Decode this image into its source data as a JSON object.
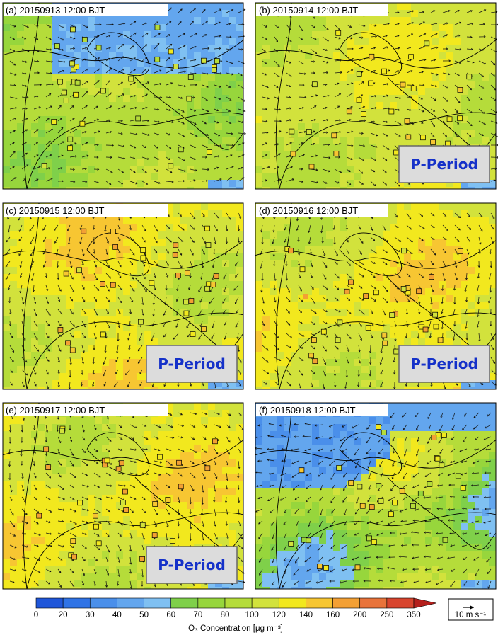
{
  "panels": [
    {
      "id": "a",
      "title": "(a) 20150913 12:00 BJT",
      "period_label": ""
    },
    {
      "id": "b",
      "title": "(b) 20150914 12:00 BJT",
      "period_label": "P-Period"
    },
    {
      "id": "c",
      "title": "(c) 20150915 12:00 BJT",
      "period_label": "P-Period"
    },
    {
      "id": "d",
      "title": "(d) 20150916 12:00 BJT",
      "period_label": "P-Period"
    },
    {
      "id": "e",
      "title": "(e) 20150917 12:00 BJT",
      "period_label": "P-Period"
    },
    {
      "id": "f",
      "title": "(f) 20150918 12:00 BJT",
      "period_label": ""
    }
  ],
  "chart_data": {
    "type": "heatmap",
    "description_free": true,
    "variable": "O₃ Concentration",
    "units": "μg m⁻³",
    "colorbar": {
      "label": "O₃ Concentration [μg m⁻³]",
      "levels": [
        0,
        20,
        30,
        40,
        50,
        60,
        70,
        80,
        100,
        120,
        140,
        160,
        200,
        250,
        350
      ],
      "colors": [
        "#1f56d9",
        "#2f73e6",
        "#4a8fea",
        "#63a6ee",
        "#7fc0f2",
        "#7fd04a",
        "#97d63c",
        "#b5dc3a",
        "#d2e23c",
        "#f2e81e",
        "#f7c632",
        "#f3a034",
        "#e8733a",
        "#d8452e",
        "#b41f1c"
      ]
    },
    "wind_reference": {
      "value": 10,
      "label": "10 m s⁻¹"
    },
    "panels": [
      {
        "id": "a",
        "dominant_range": [
          60,
          120
        ]
      },
      {
        "id": "b",
        "dominant_range": [
          80,
          140
        ]
      },
      {
        "id": "c",
        "dominant_range": [
          80,
          160
        ]
      },
      {
        "id": "d",
        "dominant_range": [
          80,
          160
        ]
      },
      {
        "id": "e",
        "dominant_range": [
          80,
          160
        ]
      },
      {
        "id": "f",
        "dominant_range": [
          30,
          140
        ]
      }
    ]
  },
  "colorbar_ticks": [
    "0",
    "20",
    "30",
    "40",
    "50",
    "60",
    "70",
    "80",
    "100",
    "120",
    "140",
    "160",
    "200",
    "250",
    "350"
  ],
  "colorbar_label": "O₃ Concentration [μg m⁻³]",
  "wind_ref_label": "10 m s⁻¹"
}
